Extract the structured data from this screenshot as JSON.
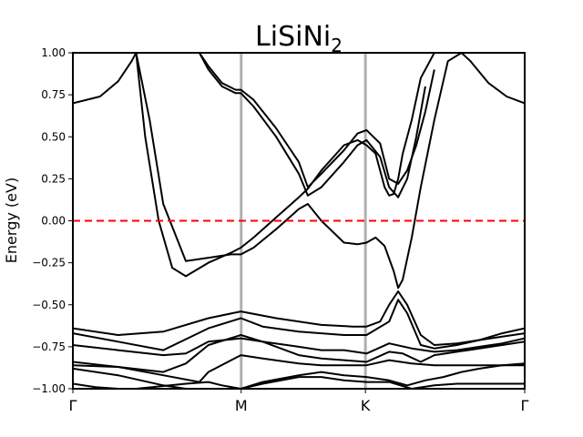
{
  "chart_data": {
    "type": "line",
    "title": "LiSiNi",
    "title_subscript": "2",
    "ylabel": "Energy (eV)",
    "ylim": [
      -1.0,
      1.0
    ],
    "xlim": [
      0,
      1
    ],
    "y_ticks": [
      -1.0,
      -0.75,
      -0.5,
      -0.25,
      0.0,
      0.25,
      0.5,
      0.75,
      1.0
    ],
    "y_tick_labels": [
      "−1.00",
      "−0.75",
      "−0.50",
      "−0.25",
      "0.00",
      "0.25",
      "0.50",
      "0.75",
      "1.00"
    ],
    "x_ticks": [
      0.0,
      0.3725,
      0.6475,
      1.0
    ],
    "x_tick_labels": [
      "Γ",
      "M",
      "K",
      "Γ"
    ],
    "fermi_level": 0.0,
    "colors": {
      "bands": "#000000",
      "fermi": "#ff0000",
      "kpath_lines": "#b0b0b0"
    },
    "series": [
      {
        "x": [
          0,
          0.06,
          0.1,
          0.13,
          0.14
        ],
        "y": [
          0.7,
          0.74,
          0.83,
          0.95,
          1.0
        ]
      },
      {
        "x": [
          0.86,
          0.88,
          0.92,
          0.96,
          1.0
        ],
        "y": [
          1.0,
          0.95,
          0.82,
          0.74,
          0.7
        ]
      },
      {
        "x": [
          0.14,
          0.17,
          0.2,
          0.25,
          0.3,
          0.35,
          0.372,
          0.4,
          0.45,
          0.5,
          0.52,
          0.55,
          0.6,
          0.63,
          0.65,
          0.67,
          0.69,
          0.71,
          0.72,
          0.73,
          0.75,
          0.77,
          0.8,
          0.83,
          0.86
        ],
        "y": [
          1.0,
          0.6,
          0.1,
          -0.24,
          -0.22,
          -0.2,
          -0.2,
          -0.16,
          -0.05,
          0.07,
          0.1,
          0.0,
          -0.13,
          -0.14,
          -0.13,
          -0.1,
          -0.15,
          -0.3,
          -0.4,
          -0.35,
          -0.1,
          0.2,
          0.6,
          0.95,
          1.0
        ]
      },
      {
        "x": [
          0.14,
          0.16,
          0.19,
          0.22,
          0.25,
          0.3,
          0.35,
          0.372,
          0.4,
          0.45,
          0.5,
          0.52,
          0.55,
          0.6,
          0.63,
          0.65,
          0.67,
          0.69,
          0.7,
          0.71,
          0.72,
          0.73,
          0.75,
          0.77,
          0.8,
          0.83,
          0.86,
          0.87
        ],
        "y": [
          1.0,
          0.5,
          0.0,
          -0.28,
          -0.33,
          -0.25,
          -0.19,
          -0.16,
          -0.1,
          0.02,
          0.14,
          0.19,
          0.3,
          0.45,
          0.48,
          0.45,
          0.4,
          0.2,
          0.15,
          0.16,
          0.25,
          0.4,
          0.6,
          0.85,
          1.0,
          1.0,
          1.0,
          1.0
        ]
      },
      {
        "x": [
          0.28,
          0.3,
          0.33,
          0.36,
          0.372,
          0.4,
          0.45,
          0.5,
          0.52,
          0.55,
          0.6,
          0.63,
          0.65,
          0.68,
          0.7,
          0.72,
          0.74,
          0.76,
          0.78,
          0.8
        ],
        "y": [
          1.0,
          0.92,
          0.82,
          0.78,
          0.78,
          0.72,
          0.55,
          0.35,
          0.2,
          0.28,
          0.42,
          0.52,
          0.54,
          0.46,
          0.25,
          0.22,
          0.3,
          0.45,
          0.65,
          0.9
        ]
      },
      {
        "x": [
          0.28,
          0.3,
          0.33,
          0.36,
          0.372,
          0.4,
          0.45,
          0.5,
          0.52,
          0.55,
          0.6,
          0.63,
          0.65,
          0.68,
          0.7,
          0.72,
          0.74,
          0.76,
          0.78
        ],
        "y": [
          1.0,
          0.9,
          0.8,
          0.76,
          0.76,
          0.68,
          0.5,
          0.28,
          0.15,
          0.2,
          0.35,
          0.45,
          0.48,
          0.38,
          0.2,
          0.14,
          0.25,
          0.5,
          0.8
        ]
      },
      {
        "x": [
          0,
          0.1,
          0.2,
          0.3,
          0.372,
          0.45,
          0.55,
          0.62,
          0.65,
          0.68,
          0.7,
          0.72,
          0.74,
          0.77,
          0.8,
          0.85,
          0.9,
          0.95,
          1.0
        ],
        "y": [
          -0.64,
          -0.68,
          -0.66,
          -0.58,
          -0.54,
          -0.58,
          -0.62,
          -0.63,
          -0.63,
          -0.6,
          -0.5,
          -0.42,
          -0.5,
          -0.68,
          -0.74,
          -0.73,
          -0.71,
          -0.67,
          -0.64
        ]
      },
      {
        "x": [
          0,
          0.1,
          0.2,
          0.3,
          0.372,
          0.42,
          0.5,
          0.6,
          0.65,
          0.7,
          0.72,
          0.74,
          0.77,
          0.8,
          0.85,
          0.9,
          0.95,
          1.0
        ],
        "y": [
          -0.67,
          -0.72,
          -0.77,
          -0.64,
          -0.58,
          -0.63,
          -0.66,
          -0.68,
          -0.68,
          -0.6,
          -0.47,
          -0.55,
          -0.74,
          -0.76,
          -0.74,
          -0.71,
          -0.69,
          -0.67
        ]
      },
      {
        "x": [
          0,
          0.1,
          0.2,
          0.25,
          0.3,
          0.372,
          0.42,
          0.5,
          0.55,
          0.6,
          0.65,
          0.7,
          0.75,
          0.8,
          0.85,
          0.9,
          0.95,
          1.0
        ],
        "y": [
          -0.74,
          -0.77,
          -0.8,
          -0.79,
          -0.72,
          -0.7,
          -0.72,
          -0.75,
          -0.77,
          -0.77,
          -0.79,
          -0.73,
          -0.76,
          -0.78,
          -0.77,
          -0.75,
          -0.73,
          -0.7
        ]
      },
      {
        "x": [
          0,
          0.1,
          0.2,
          0.25,
          0.3,
          0.372,
          0.42,
          0.5,
          0.55,
          0.6,
          0.65,
          0.7,
          0.73,
          0.77,
          0.8,
          0.85,
          0.9,
          0.95,
          1.0
        ],
        "y": [
          -0.84,
          -0.87,
          -0.9,
          -0.85,
          -0.74,
          -0.68,
          -0.72,
          -0.8,
          -0.82,
          -0.83,
          -0.84,
          -0.78,
          -0.79,
          -0.84,
          -0.8,
          -0.78,
          -0.76,
          -0.74,
          -0.72
        ]
      },
      {
        "x": [
          0,
          0.1,
          0.2,
          0.28,
          0.3,
          0.372,
          0.42,
          0.5,
          0.55,
          0.6,
          0.65,
          0.7,
          0.75,
          0.8,
          0.85,
          0.9,
          0.95,
          1.0
        ],
        "y": [
          -0.86,
          -0.87,
          -0.92,
          -0.96,
          -0.9,
          -0.8,
          -0.82,
          -0.85,
          -0.86,
          -0.86,
          -0.86,
          -0.83,
          -0.85,
          -0.86,
          -0.86,
          -0.86,
          -0.86,
          -0.86
        ]
      },
      {
        "x": [
          0,
          0.1,
          0.2,
          0.25,
          0.3,
          0.372,
          0.42,
          0.5,
          0.55,
          0.6,
          0.65,
          0.7,
          0.74,
          0.78,
          0.82,
          0.86,
          0.9,
          0.95,
          1.0
        ],
        "y": [
          -0.88,
          -0.92,
          -0.98,
          -1.0,
          -1.0,
          -1.0,
          -0.96,
          -0.92,
          -0.9,
          -0.92,
          -0.93,
          -0.95,
          -0.98,
          -0.95,
          -0.93,
          -0.9,
          -0.88,
          -0.86,
          -0.85
        ]
      },
      {
        "x": [
          0,
          0.05,
          0.1,
          0.12,
          0.14,
          0.25,
          0.3,
          0.33,
          0.372,
          0.42,
          0.5,
          0.55,
          0.6,
          0.65,
          0.7,
          0.75,
          0.8,
          0.85,
          0.9,
          0.95,
          1.0
        ],
        "y": [
          -0.97,
          -0.99,
          -1.0,
          -1.0,
          -1.0,
          -0.97,
          -0.96,
          -0.98,
          -1.0,
          -0.97,
          -0.93,
          -0.93,
          -0.95,
          -0.96,
          -0.96,
          -1.0,
          -0.98,
          -0.97,
          -0.97,
          -0.97,
          -0.97
        ]
      }
    ]
  }
}
